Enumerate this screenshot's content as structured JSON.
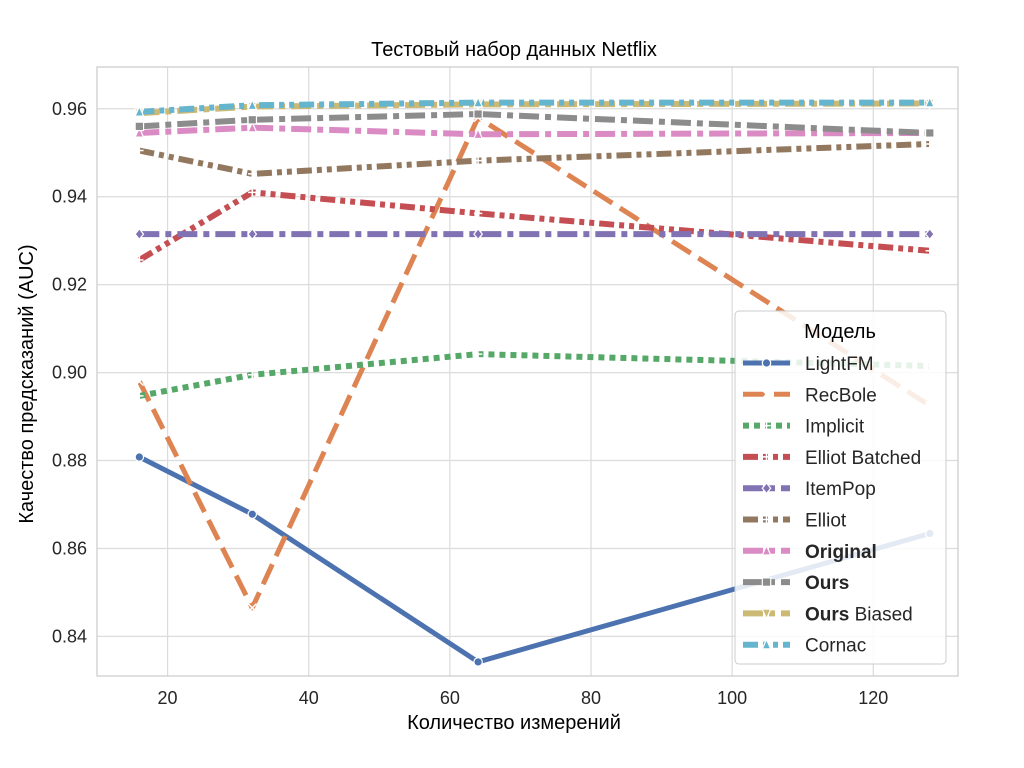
{
  "chart_data": {
    "type": "line",
    "title": "Тестовый набор данных Netflix",
    "xlabel": "Количество измерений",
    "ylabel": "Качество предсказаний (AUC)",
    "xlim": [
      10,
      132
    ],
    "ylim": [
      0.831,
      0.9695
    ],
    "xticks": [
      20,
      40,
      60,
      80,
      100,
      120
    ],
    "yticks": [
      0.84,
      0.86,
      0.88,
      0.9,
      0.92,
      0.94,
      0.96
    ],
    "ytick_labels": [
      "0.84",
      "0.86",
      "0.88",
      "0.90",
      "0.92",
      "0.94",
      "0.96"
    ],
    "grid": true,
    "legend_title": "Модель",
    "legend_position": "lower-right",
    "x": [
      16,
      32,
      64,
      128
    ],
    "series": [
      {
        "name": "LightFM",
        "name_bold": "",
        "values": [
          0.8808,
          0.8678,
          0.8342,
          0.8634
        ],
        "color": "#4c72b0",
        "dash": "solid",
        "marker": "circle"
      },
      {
        "name": "RecBole",
        "name_bold": "",
        "values": [
          0.898,
          0.8465,
          0.958,
          0.8925
        ],
        "color": "#dd8452",
        "dash": "long-dash",
        "marker": "x"
      },
      {
        "name": "Implicit",
        "name_bold": "",
        "values": [
          0.8947,
          0.8995,
          0.9042,
          0.9015
        ],
        "color": "#55a868",
        "dash": "dotted",
        "marker": "plus"
      },
      {
        "name": "Elliot Batched",
        "name_bold": "",
        "values": [
          0.9256,
          0.941,
          0.9362,
          0.9277
        ],
        "color": "#c44e52",
        "dash": "dash-dot-dot",
        "marker": "plus"
      },
      {
        "name": "ItemPop",
        "name_bold": "",
        "values": [
          0.9315,
          0.9315,
          0.9315,
          0.9315
        ],
        "color": "#8172b3",
        "dash": "dash-dot",
        "marker": "diamond"
      },
      {
        "name": "Elliot",
        "name_bold": "",
        "values": [
          0.9505,
          0.9452,
          0.9482,
          0.952
        ],
        "color": "#937860",
        "dash": "dash-dot-dot",
        "marker": "plus"
      },
      {
        "name": "",
        "name_bold": "Original",
        "values": [
          0.9545,
          0.9557,
          0.9542,
          0.9545
        ],
        "color": "#da8bc3",
        "dash": "dash-dot",
        "marker": "triangle"
      },
      {
        "name": "",
        "name_bold": "Ours",
        "values": [
          0.956,
          0.9575,
          0.9588,
          0.9545
        ],
        "color": "#8c8c8c",
        "dash": "dash-dot",
        "marker": "square"
      },
      {
        "name": "Biased",
        "name_bold": "Ours",
        "values": [
          0.959,
          0.9605,
          0.961,
          0.9612
        ],
        "color": "#ccb974",
        "dash": "dash-dot",
        "marker": "triangle-down"
      },
      {
        "name": "Cornac",
        "name_bold": "",
        "values": [
          0.9593,
          0.9608,
          0.9614,
          0.9614
        ],
        "color": "#64b5cd",
        "dash": "dash-dot-dot",
        "marker": "triangle"
      }
    ]
  }
}
